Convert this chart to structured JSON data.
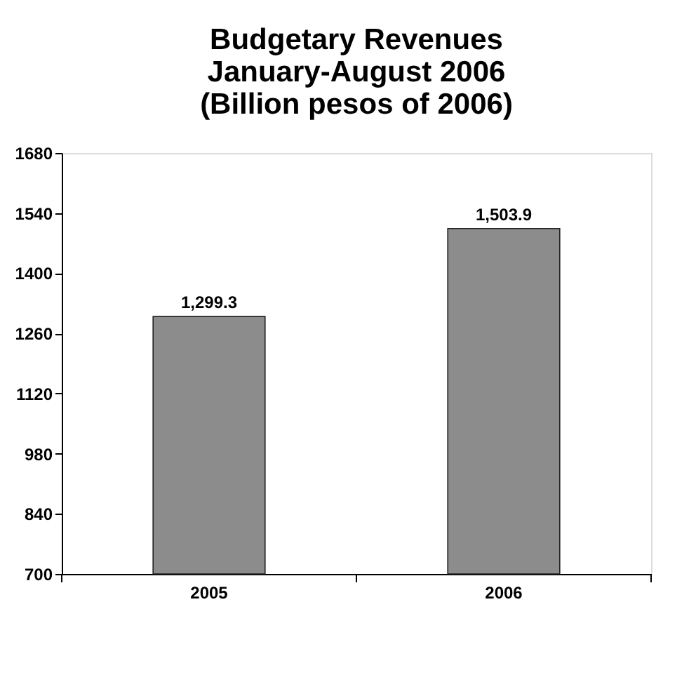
{
  "chart_data": {
    "type": "bar",
    "title": [
      "Budgetary Revenues",
      "January-August 2006",
      "(Billion pesos of 2006)"
    ],
    "categories": [
      "2005",
      "2006"
    ],
    "values": [
      1299.3,
      1503.9
    ],
    "value_labels": [
      "1,299.3",
      "1,503.9"
    ],
    "color": "#8c8c8c",
    "ylim": [
      700,
      1680
    ],
    "yticks": [
      700,
      840,
      980,
      1120,
      1260,
      1400,
      1540,
      1680
    ],
    "grid": false
  }
}
